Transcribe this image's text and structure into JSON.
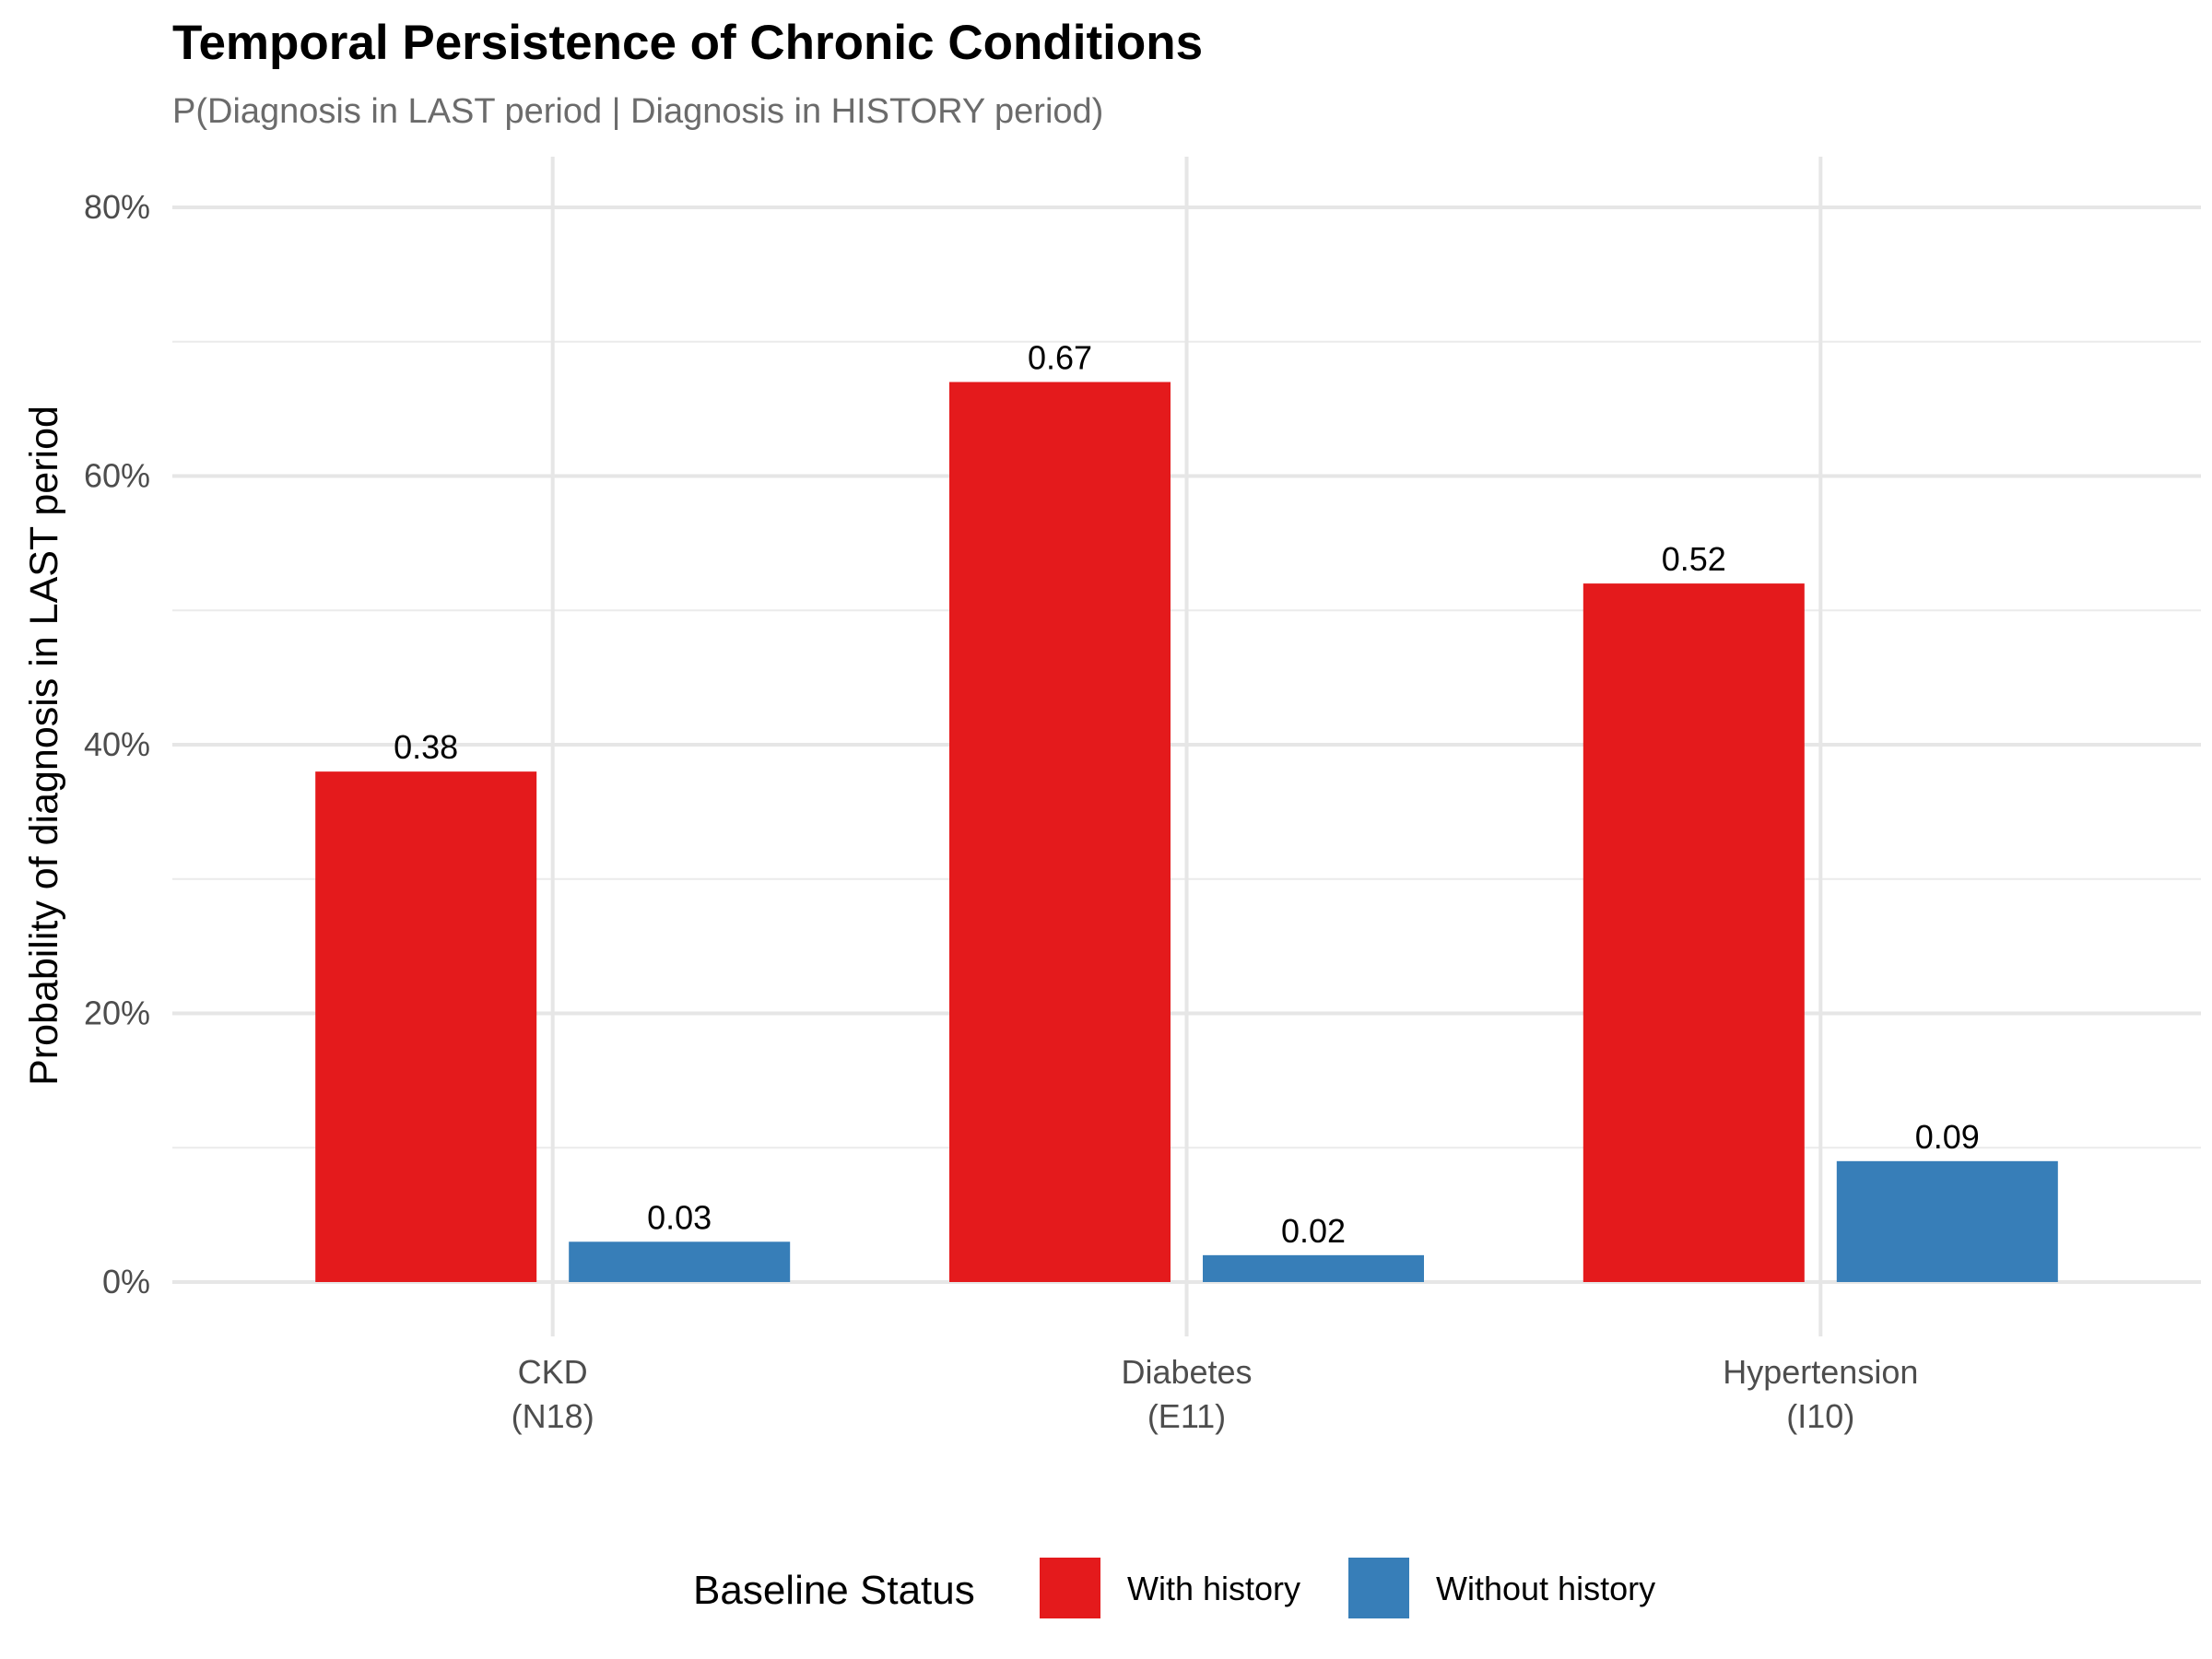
{
  "chart_data": {
    "type": "bar",
    "title": "Temporal Persistence of Chronic Conditions",
    "subtitle": "P(Diagnosis in LAST period | Diagnosis in HISTORY period)",
    "xlabel": "",
    "ylabel": "Probability of diagnosis in LAST period",
    "categories": [
      {
        "name": "CKD",
        "code": "(N18)"
      },
      {
        "name": "Diabetes",
        "code": "(E11)"
      },
      {
        "name": "Hypertension",
        "code": "(I10)"
      }
    ],
    "series": [
      {
        "name": "With history",
        "color": "#E41A1C",
        "values": [
          0.38,
          0.67,
          0.52
        ],
        "labels": [
          "0.38",
          "0.67",
          "0.52"
        ]
      },
      {
        "name": "Without history",
        "color": "#377EB8",
        "values": [
          0.03,
          0.02,
          0.09
        ],
        "labels": [
          "0.03",
          "0.02",
          "0.09"
        ]
      }
    ],
    "ylim": [
      0,
      0.8
    ],
    "yticks": [
      0,
      0.2,
      0.4,
      0.6,
      0.8
    ],
    "ytick_labels": [
      "0%",
      "20%",
      "40%",
      "60%",
      "80%"
    ],
    "grid": true,
    "legend": {
      "title": "Baseline Status",
      "position": "bottom"
    }
  }
}
